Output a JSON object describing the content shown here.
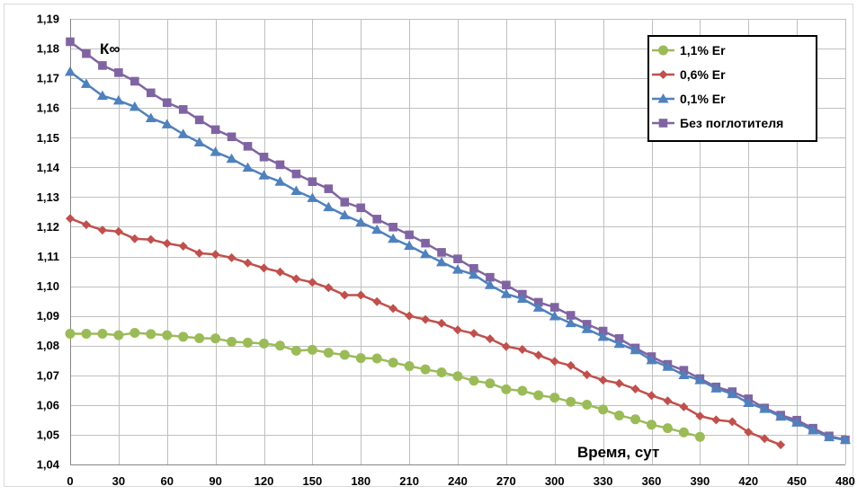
{
  "chart_data": {
    "type": "line",
    "title": "",
    "ylabel": "",
    "xlabel": "",
    "annotations": {
      "y_label": "К∞",
      "x_label": "Время, сут"
    },
    "xlim": [
      0,
      480
    ],
    "ylim": [
      1.04,
      1.19
    ],
    "grid": true,
    "legend_position": "top-right",
    "x_ticks": [
      "0",
      "30",
      "60",
      "90",
      "120",
      "150",
      "180",
      "210",
      "240",
      "270",
      "300",
      "330",
      "360",
      "390",
      "420",
      "450",
      "480"
    ],
    "y_ticks": [
      "1,04",
      "1,05",
      "1,06",
      "1,07",
      "1,08",
      "1,09",
      "1,10",
      "1,11",
      "1,12",
      "1,13",
      "1,14",
      "1,15",
      "1,16",
      "1,17",
      "1,18",
      "1,19"
    ],
    "series": [
      {
        "name": "1,1% Er",
        "color": "#9BBB59",
        "marker": "circle",
        "x": [
          0,
          10,
          20,
          30,
          40,
          50,
          60,
          70,
          80,
          90,
          100,
          110,
          120,
          130,
          140,
          150,
          160,
          170,
          180,
          190,
          200,
          210,
          220,
          230,
          240,
          250,
          260,
          270,
          280,
          290,
          300,
          310,
          320,
          330,
          340,
          350,
          360,
          370,
          380,
          390
        ],
        "y": [
          1.084,
          1.084,
          1.084,
          1.0835,
          1.0843,
          1.0839,
          1.0835,
          1.083,
          1.0825,
          1.0824,
          1.0813,
          1.081,
          1.0807,
          1.08,
          1.0783,
          1.0786,
          1.0776,
          1.0769,
          1.0758,
          1.0757,
          1.0743,
          1.0731,
          1.072,
          1.071,
          1.0697,
          1.0682,
          1.0673,
          1.0653,
          1.0648,
          1.0633,
          1.0625,
          1.0611,
          1.0601,
          1.0585,
          1.0565,
          1.0552,
          1.0534,
          1.0522,
          1.0508,
          1.0493
        ]
      },
      {
        "name": "0,6% Er",
        "color": "#C0504D",
        "marker": "diamond",
        "x": [
          0,
          10,
          20,
          30,
          40,
          50,
          60,
          70,
          80,
          90,
          100,
          110,
          120,
          130,
          140,
          150,
          160,
          170,
          180,
          190,
          200,
          210,
          220,
          230,
          240,
          250,
          260,
          270,
          280,
          290,
          300,
          310,
          320,
          330,
          340,
          350,
          360,
          370,
          380,
          390,
          400,
          410,
          420,
          430,
          440
        ],
        "y": [
          1.1228,
          1.1207,
          1.1189,
          1.1184,
          1.116,
          1.1157,
          1.1144,
          1.1135,
          1.1111,
          1.1107,
          1.1096,
          1.1078,
          1.1061,
          1.1048,
          1.1025,
          1.1013,
          1.0995,
          1.097,
          1.097,
          1.0948,
          1.0925,
          1.09,
          1.0888,
          1.0875,
          1.0853,
          1.0841,
          1.0823,
          1.0797,
          1.0787,
          1.0768,
          1.0747,
          1.0733,
          1.0702,
          1.0684,
          1.0673,
          1.0654,
          1.0632,
          1.0614,
          1.0594,
          1.0563,
          1.055,
          1.0544,
          1.0509,
          1.0487,
          1.0466
        ]
      },
      {
        "name": "0,1% Er",
        "color": "#4F81BD",
        "marker": "triangle",
        "x": [
          0,
          10,
          20,
          30,
          40,
          50,
          60,
          70,
          80,
          90,
          100,
          110,
          120,
          130,
          140,
          150,
          160,
          170,
          180,
          190,
          200,
          210,
          220,
          230,
          240,
          250,
          260,
          270,
          280,
          290,
          300,
          310,
          320,
          330,
          340,
          350,
          360,
          370,
          380,
          390,
          400,
          410,
          420,
          430,
          440,
          450,
          460,
          470,
          480
        ],
        "y": [
          1.1722,
          1.1681,
          1.1641,
          1.1625,
          1.1604,
          1.1566,
          1.1545,
          1.1512,
          1.1484,
          1.1452,
          1.1429,
          1.1399,
          1.1373,
          1.1352,
          1.1321,
          1.1297,
          1.1266,
          1.1239,
          1.1215,
          1.119,
          1.116,
          1.1136,
          1.1108,
          1.1081,
          1.1056,
          1.1039,
          1.1004,
          1.0974,
          1.0958,
          1.0928,
          1.0899,
          1.0876,
          1.0856,
          1.083,
          1.0806,
          1.0785,
          1.0751,
          1.0729,
          1.0701,
          1.0684,
          1.0656,
          1.0637,
          1.0607,
          1.0587,
          1.0561,
          1.0541,
          1.0515,
          1.0492,
          1.0483
        ]
      },
      {
        "name": "Без поглотителя",
        "color": "#8064A2",
        "marker": "square",
        "x": [
          0,
          10,
          20,
          30,
          40,
          50,
          60,
          70,
          80,
          90,
          100,
          110,
          120,
          130,
          140,
          150,
          160,
          170,
          180,
          190,
          200,
          210,
          220,
          230,
          240,
          250,
          260,
          270,
          280,
          290,
          300,
          310,
          320,
          330,
          340,
          350,
          360,
          370,
          380,
          390,
          400,
          410,
          420,
          430,
          440,
          450,
          460,
          470,
          480
        ],
        "y": [
          1.1823,
          1.1783,
          1.1743,
          1.1719,
          1.169,
          1.1651,
          1.1618,
          1.1595,
          1.156,
          1.1527,
          1.1503,
          1.1471,
          1.1435,
          1.1409,
          1.1378,
          1.1352,
          1.1328,
          1.1283,
          1.1264,
          1.1226,
          1.1199,
          1.1173,
          1.1145,
          1.1114,
          1.1092,
          1.106,
          1.103,
          1.1004,
          1.0973,
          1.0946,
          1.0929,
          1.0902,
          1.0872,
          1.0849,
          1.0824,
          1.0792,
          1.0763,
          1.0737,
          1.0717,
          1.0689,
          1.0661,
          1.0645,
          1.0621,
          1.059,
          1.0566,
          1.0549,
          1.0522,
          1.0496,
          1.0483
        ]
      }
    ]
  }
}
